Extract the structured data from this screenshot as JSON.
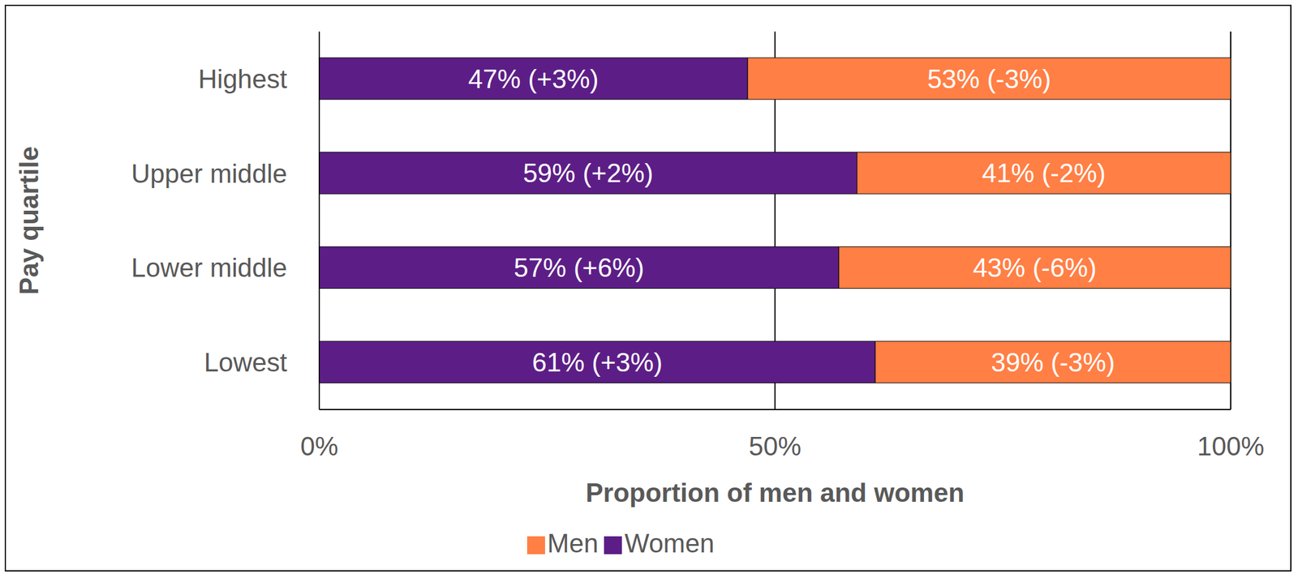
{
  "chart_data": {
    "type": "bar",
    "orientation": "horizontal",
    "stacked": true,
    "data_labels": true,
    "grid": true,
    "legend": "bottom",
    "x_label": "Proportion of men and women",
    "y_label": "Pay quartile",
    "categories": [
      "Highest",
      "Upper middle",
      "Lower middle",
      "Lowest"
    ],
    "xlim": [
      0,
      100
    ],
    "xticks": [
      {
        "value": 0,
        "label": "0%"
      },
      {
        "value": 50,
        "label": "50%"
      },
      {
        "value": 100,
        "label": "100%"
      }
    ],
    "series": [
      {
        "name": "Women",
        "color": "#5c1e86",
        "values": [
          47,
          59,
          57,
          61
        ],
        "value_labels": [
          "47% (+3%)",
          "59% (+2%)",
          "57% (+6%)",
          "61% (+3%)"
        ]
      },
      {
        "name": "Men",
        "color": "#ff7f45",
        "values": [
          53,
          41,
          43,
          39
        ],
        "value_labels": [
          "53% (-3%)",
          "41% (-2%)",
          "43% (-6%)",
          "39% (-3%)"
        ]
      }
    ]
  }
}
